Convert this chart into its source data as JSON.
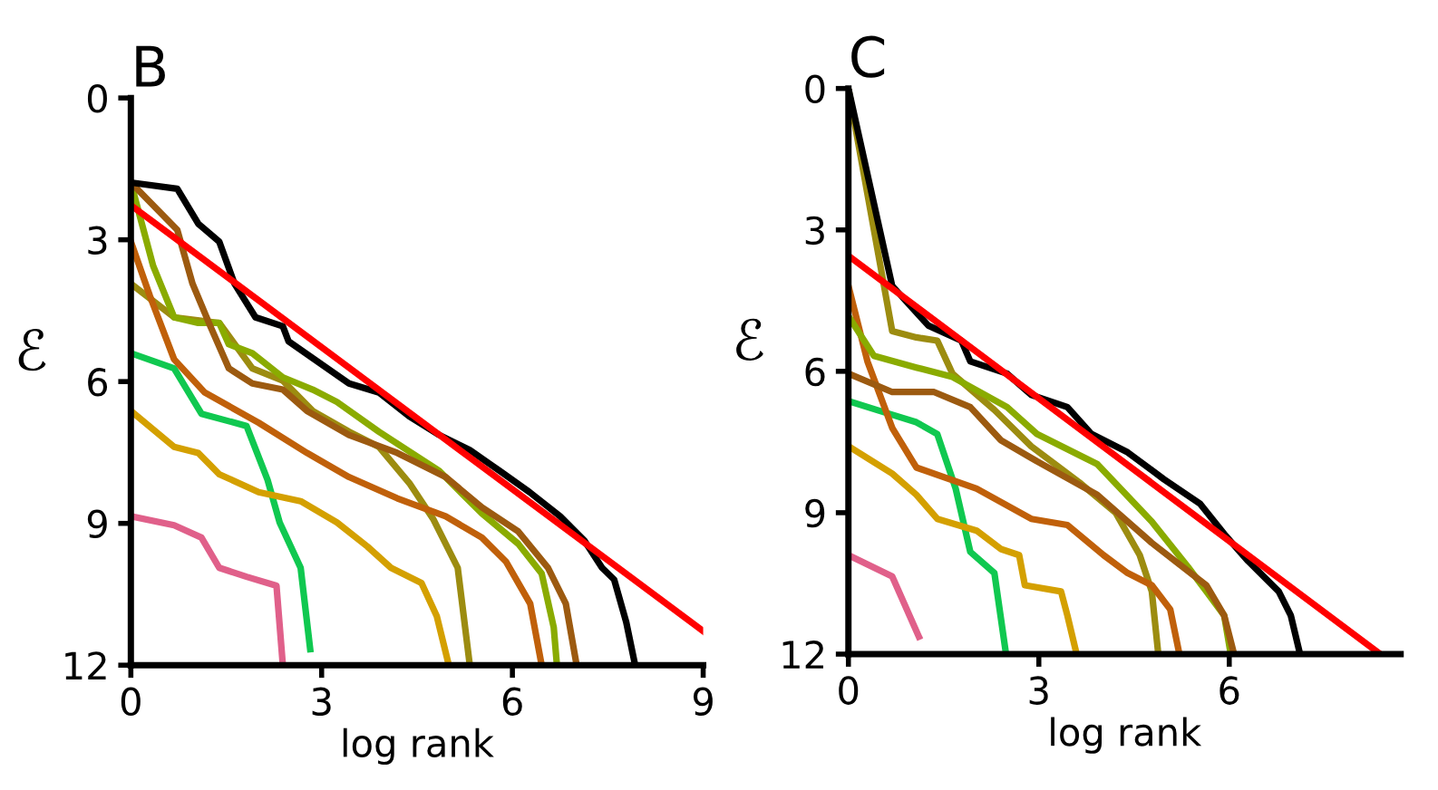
{
  "chart_data": [
    {
      "type": "line",
      "title": "B",
      "xlabel": "log rank",
      "ylabel": "ℰ",
      "xlim": [
        0,
        9
      ],
      "xticks": [
        0,
        3,
        6,
        9
      ],
      "ylim": [
        12,
        0
      ],
      "yticks": [
        0,
        3,
        6,
        9,
        12
      ],
      "grid": false,
      "legend": false,
      "marker": "none",
      "line_style": "solid",
      "series": [
        {
          "color": "#e0608a",
          "x": [
            0,
            0.68,
            1.11,
            1.39,
            1.82,
            2.29,
            2.39
          ],
          "values": [
            8.85,
            9.04,
            9.3,
            9.94,
            10.13,
            10.32,
            12
          ]
        },
        {
          "color": "#10c850",
          "x": [
            0,
            0.68,
            1.11,
            1.82,
            2.15,
            2.34,
            2.67,
            2.82
          ],
          "values": [
            5.4,
            5.72,
            6.68,
            6.94,
            8.08,
            8.98,
            9.94,
            11.66
          ]
        },
        {
          "color": "#d4a000",
          "x": [
            0,
            0.68,
            1.06,
            1.39,
            2.01,
            2.67,
            3.24,
            3.72,
            4.09,
            4.57,
            4.81,
            5.0
          ],
          "values": [
            6.62,
            7.38,
            7.51,
            7.96,
            8.34,
            8.53,
            8.98,
            9.49,
            9.94,
            10.26,
            10.96,
            12
          ]
        },
        {
          "color": "#9c8c10",
          "x": [
            0,
            0.68,
            1.39,
            1.91,
            2.39,
            2.86,
            3.43,
            3.9,
            4.38,
            4.76,
            5.14,
            5.33
          ],
          "values": [
            3.93,
            4.64,
            4.76,
            5.72,
            5.98,
            6.62,
            7.06,
            7.38,
            8.15,
            8.92,
            9.94,
            12
          ]
        },
        {
          "color": "#c0600a",
          "x": [
            0,
            0.3,
            0.68,
            1.16,
            2.01,
            2.77,
            3.43,
            4.19,
            4.95,
            5.52,
            5.9,
            6.28,
            6.46
          ],
          "values": [
            3.04,
            4.19,
            5.53,
            6.23,
            6.87,
            7.51,
            8.02,
            8.47,
            8.85,
            9.3,
            9.81,
            10.7,
            12
          ]
        },
        {
          "color": "#8aab00",
          "x": [
            0,
            0.35,
            0.68,
            1.06,
            1.39,
            1.54,
            1.91,
            2.39,
            2.86,
            3.24,
            3.9,
            4.85,
            5.52,
            6.09,
            6.46,
            6.65,
            6.7
          ],
          "values": [
            1.79,
            3.55,
            4.64,
            4.76,
            4.76,
            5.21,
            5.4,
            5.91,
            6.17,
            6.43,
            7.06,
            7.89,
            8.79,
            9.43,
            10.06,
            11.2,
            12
          ]
        },
        {
          "color": "#9c5a10",
          "x": [
            0,
            0.73,
            0.97,
            1.25,
            1.54,
            1.91,
            2.39,
            2.77,
            3.43,
            4.19,
            4.95,
            5.52,
            6.09,
            6.56,
            6.84,
            7.01
          ],
          "values": [
            1.79,
            2.79,
            3.93,
            4.83,
            5.72,
            6.04,
            6.17,
            6.62,
            7.13,
            7.51,
            8.02,
            8.66,
            9.17,
            9.94,
            10.7,
            12
          ]
        },
        {
          "color": "#000000",
          "x": [
            0,
            0.73,
            1.06,
            1.39,
            1.63,
            1.96,
            2.39,
            2.48,
            2.96,
            3.43,
            3.9,
            4.38,
            4.85,
            5.33,
            5.8,
            6.27,
            6.75,
            7.13,
            7.41,
            7.6,
            7.79,
            7.93
          ],
          "values": [
            1.79,
            1.92,
            2.66,
            3.04,
            3.93,
            4.64,
            4.83,
            5.15,
            5.6,
            6.04,
            6.23,
            6.74,
            7.13,
            7.45,
            7.89,
            8.34,
            8.85,
            9.36,
            9.94,
            10.19,
            11.09,
            12
          ]
        },
        {
          "color": "#ff0000",
          "x": [
            0,
            9
          ],
          "values": [
            2.27,
            11.28
          ]
        }
      ]
    },
    {
      "type": "line",
      "title": "C",
      "xlabel": "log rank",
      "ylabel": "ℰ",
      "xlim": [
        0,
        8.7
      ],
      "xticks": [
        0,
        3,
        6
      ],
      "ylim": [
        12,
        0
      ],
      "yticks": [
        0,
        3,
        6,
        9,
        12
      ],
      "grid": false,
      "legend": false,
      "marker": "none",
      "line_style": "solid",
      "series": [
        {
          "color": "#e0608a",
          "x": [
            0,
            0.69,
            1.11
          ],
          "values": [
            9.9,
            10.35,
            11.63
          ]
        },
        {
          "color": "#10c850",
          "x": [
            0,
            0.59,
            1.07,
            1.4,
            1.69,
            1.92,
            2.3,
            2.48
          ],
          "values": [
            6.63,
            6.88,
            7.08,
            7.33,
            8.49,
            9.83,
            10.28,
            11.97
          ]
        },
        {
          "color": "#d4a000",
          "x": [
            0,
            0.69,
            1.07,
            1.4,
            2.02,
            2.4,
            2.69,
            2.78,
            3.35,
            3.45,
            3.59
          ],
          "values": [
            7.59,
            8.17,
            8.62,
            9.13,
            9.38,
            9.77,
            9.9,
            10.54,
            10.67,
            11.18,
            11.97
          ]
        },
        {
          "color": "#9c8c10",
          "x": [
            0,
            0.69,
            1.07,
            1.4,
            1.64,
            2.3,
            2.88,
            3.64,
            4.21,
            4.59,
            4.78,
            4.88
          ],
          "values": [
            0,
            5.15,
            5.28,
            5.35,
            6.05,
            6.82,
            7.59,
            8.36,
            9.0,
            9.9,
            10.67,
            11.97
          ]
        },
        {
          "color": "#c0600a",
          "x": [
            0,
            0.3,
            0.69,
            1.07,
            2.02,
            2.88,
            3.45,
            4.02,
            4.4,
            4.78,
            5.07,
            5.21
          ],
          "values": [
            4.19,
            5.79,
            7.2,
            8.04,
            8.49,
            9.13,
            9.26,
            9.9,
            10.28,
            10.54,
            11.05,
            11.97
          ]
        },
        {
          "color": "#8aab00",
          "x": [
            0,
            0.4,
            1.07,
            1.64,
            2.5,
            2.97,
            3.92,
            4.78,
            5.35,
            5.64,
            5.92,
            6.02
          ],
          "values": [
            4.83,
            5.67,
            5.92,
            6.12,
            6.76,
            7.33,
            7.97,
            9.19,
            10.15,
            10.67,
            11.18,
            11.97
          ]
        },
        {
          "color": "#9c5a10",
          "x": [
            0,
            0.69,
            1.35,
            1.92,
            2.4,
            2.97,
            3.92,
            4.78,
            5.64,
            5.92,
            6.07
          ],
          "values": [
            6.05,
            6.44,
            6.44,
            6.76,
            7.46,
            7.91,
            8.62,
            9.64,
            10.54,
            11.18,
            11.97
          ]
        },
        {
          "color": "#000000",
          "x": [
            0,
            0.69,
            1.26,
            1.78,
            1.92,
            2.5,
            2.88,
            3.45,
            3.83,
            4.4,
            4.97,
            5.54,
            5.92,
            6.3,
            6.78,
            6.97,
            7.11
          ],
          "values": [
            0,
            4.19,
            5.03,
            5.35,
            5.79,
            6.05,
            6.5,
            6.76,
            7.33,
            7.72,
            8.29,
            8.81,
            9.45,
            10.03,
            10.67,
            11.18,
            11.97
          ]
        },
        {
          "color": "#ff0000",
          "x": [
            0,
            8.35
          ],
          "values": [
            3.55,
            11.97
          ]
        }
      ]
    }
  ]
}
